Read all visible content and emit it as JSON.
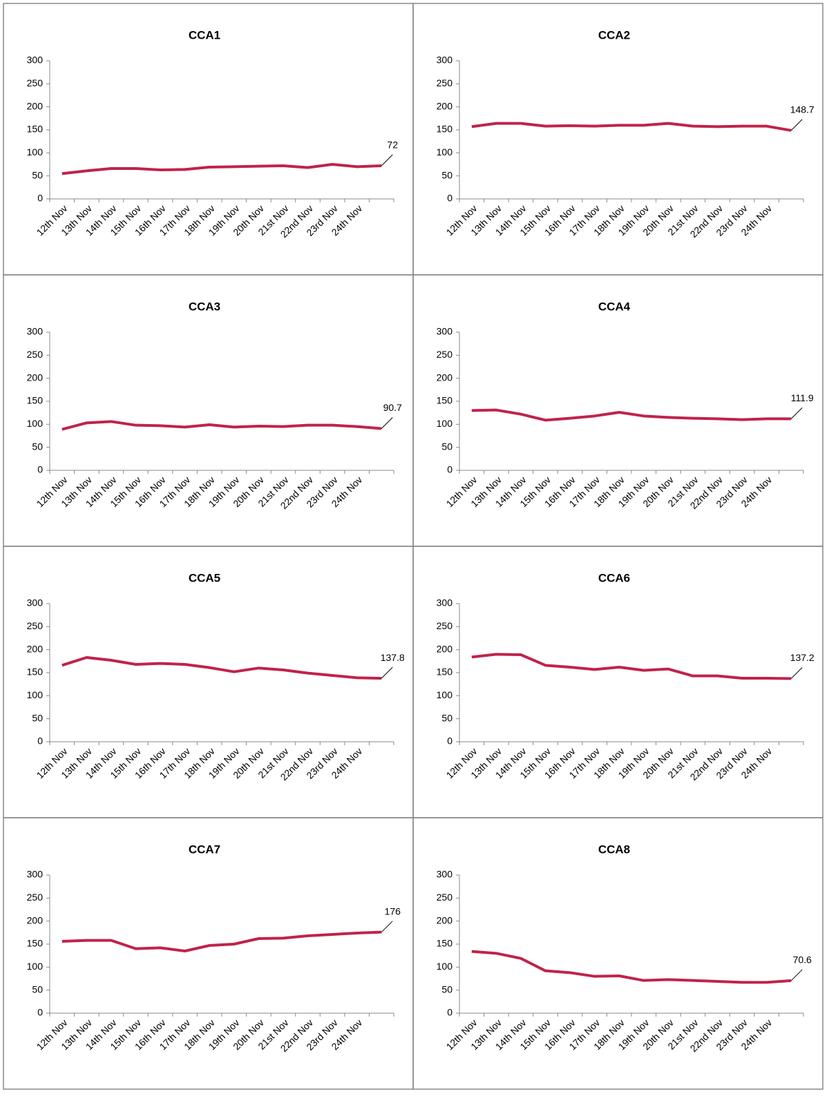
{
  "chart_data": [
    {
      "type": "line",
      "title": "CCA1",
      "categories": [
        "12th Nov",
        "13th Nov",
        "14th Nov",
        "15th Nov",
        "16th Nov",
        "17th Nov",
        "18th Nov",
        "19th Nov",
        "20th Nov",
        "21st Nov",
        "22nd Nov",
        "23rd Nov",
        "24th Nov",
        null
      ],
      "series": [
        {
          "color": "#c0234a",
          "values": [
            55,
            61,
            66,
            66,
            63,
            64,
            69,
            70,
            71,
            72,
            68,
            75,
            70,
            72
          ]
        }
      ],
      "ylim": [
        0,
        300
      ],
      "yticks": [
        0,
        50,
        100,
        150,
        200,
        250,
        300
      ]
    },
    {
      "type": "line",
      "title": "CCA2",
      "categories": [
        "12th Nov",
        "13th Nov",
        "14th Nov",
        "15th Nov",
        "16th Nov",
        "17th Nov",
        "18th Nov",
        "19th Nov",
        "20th Nov",
        "21st Nov",
        "22nd Nov",
        "23rd Nov",
        "24th Nov",
        null
      ],
      "series": [
        {
          "color": "#c0234a",
          "values": [
            157,
            164,
            164,
            158,
            159,
            158,
            160,
            160,
            164,
            158,
            157,
            158,
            158,
            148.7
          ]
        }
      ],
      "ylim": [
        0,
        300
      ],
      "yticks": [
        0,
        50,
        100,
        150,
        200,
        250,
        300
      ]
    },
    {
      "type": "line",
      "title": "CCA3",
      "categories": [
        "12th Nov",
        "13th Nov",
        "14th Nov",
        "15th Nov",
        "16th Nov",
        "17th Nov",
        "18th Nov",
        "19th Nov",
        "20th Nov",
        "21st Nov",
        "22nd Nov",
        "23rd Nov",
        "24th Nov",
        null
      ],
      "series": [
        {
          "color": "#c0234a",
          "values": [
            89,
            103,
            106,
            98,
            97,
            94,
            99,
            94,
            96,
            95,
            98,
            98,
            95,
            90.7
          ]
        }
      ],
      "ylim": [
        0,
        300
      ],
      "yticks": [
        0,
        50,
        100,
        150,
        200,
        250,
        300
      ]
    },
    {
      "type": "line",
      "title": "CCA4",
      "categories": [
        "12th Nov",
        "13th Nov",
        "14th Nov",
        "15th Nov",
        "16th Nov",
        "17th Nov",
        "18th Nov",
        "19th Nov",
        "20th Nov",
        "21st Nov",
        "22nd Nov",
        "23rd Nov",
        "24th Nov",
        null
      ],
      "series": [
        {
          "color": "#c0234a",
          "values": [
            130,
            131,
            122,
            109,
            113,
            118,
            126,
            118,
            115,
            113,
            112,
            110,
            112,
            111.9
          ]
        }
      ],
      "ylim": [
        0,
        300
      ],
      "yticks": [
        0,
        50,
        100,
        150,
        200,
        250,
        300
      ]
    },
    {
      "type": "line",
      "title": "CCA5",
      "categories": [
        "12th Nov",
        "13th Nov",
        "14th Nov",
        "15th Nov",
        "16th Nov",
        "17th Nov",
        "18th Nov",
        "19th Nov",
        "20th Nov",
        "21st Nov",
        "22nd Nov",
        "23rd Nov",
        "24th Nov",
        null
      ],
      "series": [
        {
          "color": "#c0234a",
          "values": [
            166,
            183,
            177,
            168,
            170,
            168,
            161,
            152,
            160,
            156,
            149,
            144,
            139,
            137.8
          ]
        }
      ],
      "ylim": [
        0,
        300
      ],
      "yticks": [
        0,
        50,
        100,
        150,
        200,
        250,
        300
      ]
    },
    {
      "type": "line",
      "title": "CCA6",
      "categories": [
        "12th Nov",
        "13th Nov",
        "14th Nov",
        "15th Nov",
        "16th Nov",
        "17th Nov",
        "18th Nov",
        "19th Nov",
        "20th Nov",
        "21st Nov",
        "22nd Nov",
        "23rd Nov",
        "24th Nov",
        null
      ],
      "series": [
        {
          "color": "#c0234a",
          "values": [
            184,
            190,
            189,
            166,
            162,
            157,
            162,
            155,
            158,
            143,
            143,
            138,
            138,
            137.2
          ]
        }
      ],
      "ylim": [
        0,
        300
      ],
      "yticks": [
        0,
        50,
        100,
        150,
        200,
        250,
        300
      ]
    },
    {
      "type": "line",
      "title": "CCA7",
      "categories": [
        "12th Nov",
        "13th Nov",
        "14th Nov",
        "15th Nov",
        "16th Nov",
        "17th Nov",
        "18th Nov",
        "19th Nov",
        "20th Nov",
        "21st Nov",
        "22nd Nov",
        "23rd Nov",
        "24th Nov",
        null
      ],
      "series": [
        {
          "color": "#c0234a",
          "values": [
            156,
            158,
            158,
            140,
            142,
            135,
            147,
            150,
            162,
            163,
            168,
            171,
            174,
            176
          ]
        }
      ],
      "ylim": [
        0,
        300
      ],
      "yticks": [
        0,
        50,
        100,
        150,
        200,
        250,
        300
      ]
    },
    {
      "type": "line",
      "title": "CCA8",
      "categories": [
        "12th Nov",
        "13th Nov",
        "14th Nov",
        "15th Nov",
        "16th Nov",
        "17th Nov",
        "18th Nov",
        "19th Nov",
        "20th Nov",
        "21st Nov",
        "22nd Nov",
        "23rd Nov",
        "24th Nov",
        null
      ],
      "series": [
        {
          "color": "#c0234a",
          "values": [
            134,
            130,
            119,
            92,
            88,
            80,
            81,
            71,
            73,
            71,
            69,
            67,
            67,
            70.6
          ]
        }
      ],
      "ylim": [
        0,
        300
      ],
      "yticks": [
        0,
        50,
        100,
        150,
        200,
        250,
        300
      ]
    }
  ]
}
